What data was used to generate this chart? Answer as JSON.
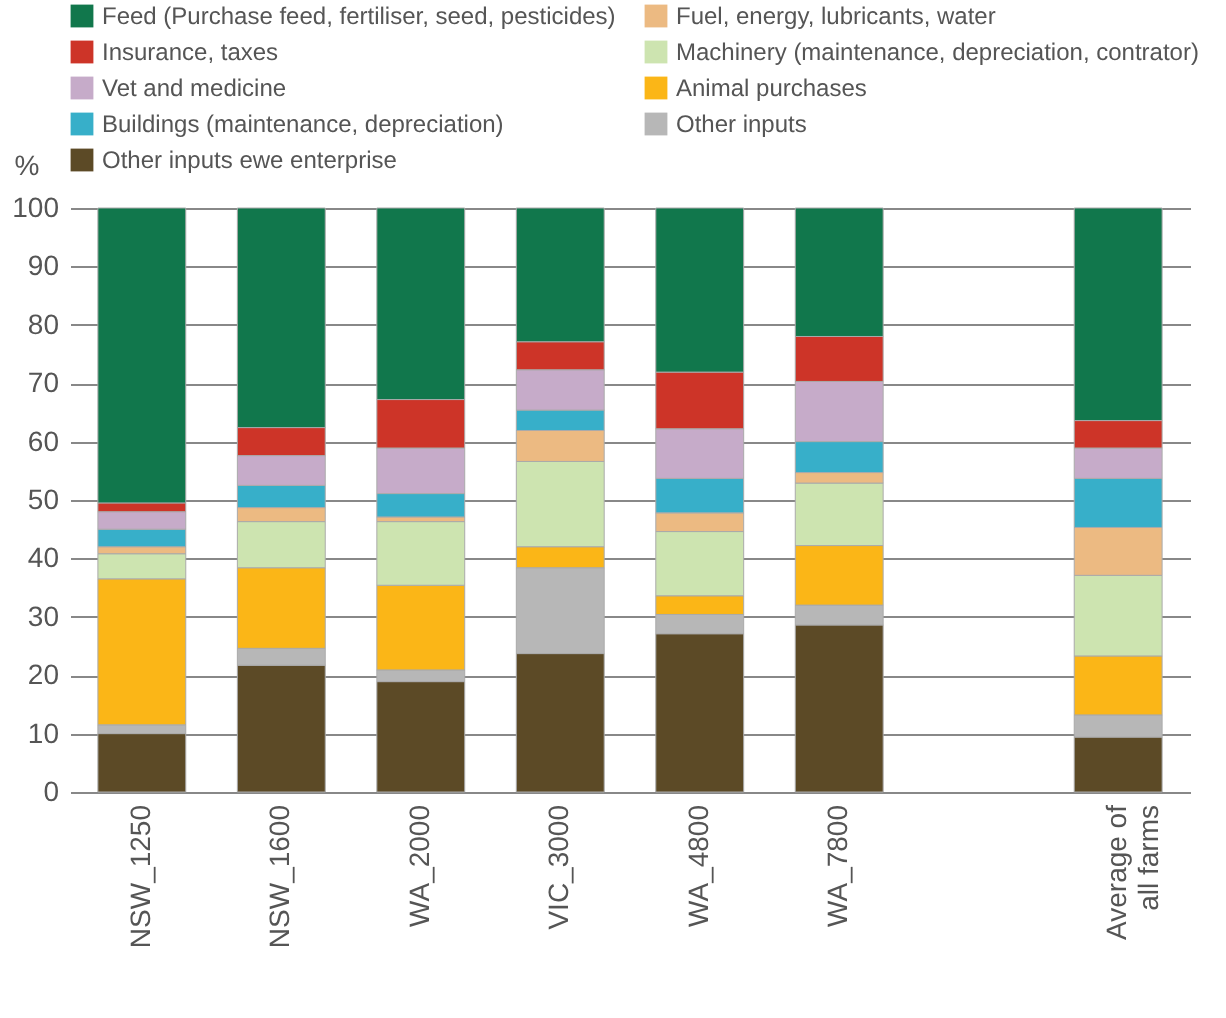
{
  "chart_data": {
    "type": "bar",
    "stacked": true,
    "ylabel": "%",
    "categories": [
      "NSW_1250",
      "NSW_1600",
      "WA_2000",
      "VIC_3000",
      "WA_4800",
      "WA_7800",
      null,
      "Average of all farms"
    ],
    "series": [
      {
        "name": "Other inputs ewe enterprise",
        "color": "#5c4a26",
        "values": [
          10,
          21.7,
          18.9,
          23.7,
          27.1,
          28.6,
          null,
          9.4
        ]
      },
      {
        "name": "Other inputs",
        "color": "#b7b7b7",
        "values": [
          1.5,
          2.9,
          2.0,
          14.7,
          3.3,
          3.4,
          null,
          3.8
        ]
      },
      {
        "name": "Animal purchases",
        "color": "#fbb617",
        "values": [
          25,
          13.8,
          14.5,
          3.6,
          3.2,
          10.2,
          null,
          10.1
        ]
      },
      {
        "name": "Machinery (maintenance, depreciation, contrator)",
        "color": "#cde4b0",
        "values": [
          4.3,
          7.9,
          10.9,
          14.6,
          11.0,
          10.7,
          null,
          13.8
        ]
      },
      {
        "name": "Fuel, energy, lubricants, water",
        "color": "#ecba82",
        "values": [
          1.2,
          2.4,
          0.8,
          5.3,
          3.2,
          1.8,
          null,
          8.2
        ]
      },
      {
        "name": "Buildings (maintenance, depreciation)",
        "color": "#37afc9",
        "values": [
          3,
          3.8,
          4.0,
          3.5,
          5.9,
          5.3,
          null,
          8.4
        ]
      },
      {
        "name": "Vet and medicine",
        "color": "#c6abc9",
        "values": [
          3,
          5.1,
          7.8,
          6.9,
          8.5,
          10.3,
          null,
          5.2
        ]
      },
      {
        "name": "Insurance, taxes",
        "color": "#cd3428",
        "values": [
          1.5,
          4.8,
          8.3,
          4.8,
          9.7,
          7.7,
          null,
          4.7
        ]
      },
      {
        "name": "Feed (Purchase feed, fertiliser, seed, pesticides)",
        "color": "#11774c",
        "values": [
          50.5,
          37.6,
          32.8,
          22.9,
          28.1,
          22.0,
          null,
          36.4
        ]
      }
    ],
    "ylim": [
      0,
      100
    ],
    "yticks": [
      0,
      10,
      20,
      30,
      40,
      50,
      60,
      70,
      80,
      90,
      100
    ],
    "grid": "y",
    "legend": "top"
  }
}
